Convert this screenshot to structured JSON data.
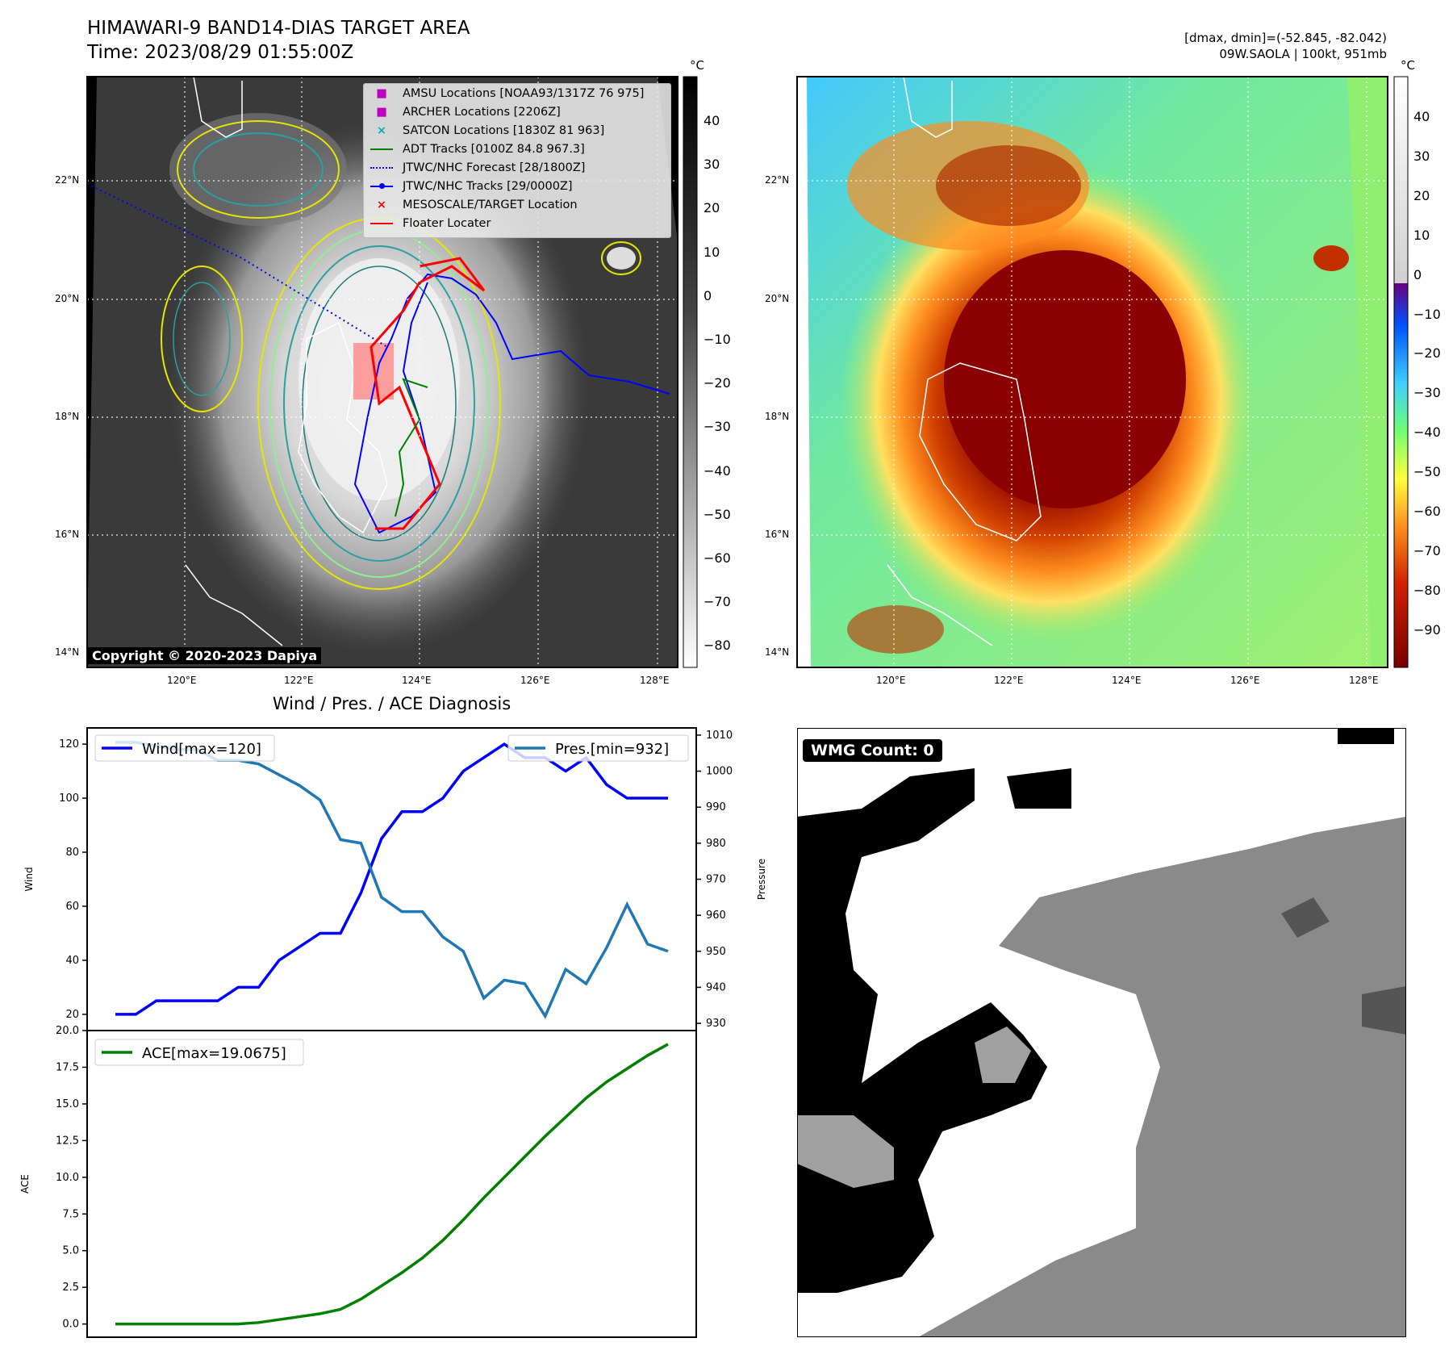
{
  "header": {
    "title": "HIMAWARI-9 BAND14-DIAS TARGET AREA",
    "time": "Time: 2023/08/29 01:55:00Z",
    "dmax_dmin": "[dmax, dmin]=(-52.845, -82.042)",
    "storm": "09W.SAOLA | 100kt, 951mb"
  },
  "colors": {
    "wind": "#0000ff",
    "pressure": "#1f77b4",
    "ace": "#008000"
  },
  "map_left": {
    "legend": [
      {
        "label": "AMSU Locations [NOAA93/1317Z 76 975]",
        "marker": "square",
        "color": "#c000c0"
      },
      {
        "label": "ARCHER Locations [2206Z]",
        "marker": "square",
        "color": "#c000c0"
      },
      {
        "label": "SATCON Locations [1830Z 81 963]",
        "marker": "x",
        "color": "#00b0b0"
      },
      {
        "label": "ADT Tracks [0100Z 84.8 967.3]",
        "marker": "line",
        "color": "#008000"
      },
      {
        "label": "JTWC/NHC Forecast [28/1800Z]",
        "marker": "dotted",
        "color": "#0000ff"
      },
      {
        "label": "JTWC/NHC Tracks [29/0000Z]",
        "marker": "line-dot",
        "color": "#0000ff"
      },
      {
        "label": "MESOSCALE/TARGET Location",
        "marker": "x",
        "color": "#ff0000"
      },
      {
        "label": "Floater Locater",
        "marker": "line",
        "color": "#ff0000"
      }
    ],
    "copyright": "Copyright © 2020-2023 Dapiya",
    "colorbar_unit": "°C",
    "colorbar_ticks": [
      "40",
      "30",
      "20",
      "10",
      "0",
      "−10",
      "−20",
      "−30",
      "−40",
      "−50",
      "−60",
      "−70",
      "−80"
    ]
  },
  "map_right": {
    "colorbar_unit": "°C",
    "colorbar_ticks": [
      "40",
      "30",
      "20",
      "10",
      "0",
      "−10",
      "−20",
      "−30",
      "−40",
      "−50",
      "−60",
      "−70",
      "−80",
      "−90"
    ]
  },
  "map_axes": {
    "lat_labels": [
      "22°N",
      "20°N",
      "18°N",
      "16°N",
      "14°N"
    ],
    "lon_labels": [
      "120°E",
      "122°E",
      "124°E",
      "126°E",
      "128°E"
    ]
  },
  "chart_data": [
    {
      "type": "line",
      "title": "Wind / Pres. / ACE Diagnosis",
      "ylabel": "Wind",
      "y2label": "Pressure",
      "ylim": [
        14,
        126
      ],
      "y2lim": [
        928,
        1012
      ],
      "yticks": [
        "20",
        "40",
        "60",
        "80",
        "100",
        "120"
      ],
      "y2ticks": [
        "930",
        "940",
        "950",
        "960",
        "970",
        "980",
        "990",
        "1000",
        "1010"
      ],
      "series": [
        {
          "name": "Wind[max=120]",
          "axis": "left",
          "values": [
            20,
            20,
            25,
            25,
            25,
            25,
            30,
            30,
            40,
            45,
            50,
            50,
            65,
            85,
            95,
            95,
            100,
            110,
            115,
            120,
            115,
            115,
            110,
            115,
            105,
            100,
            100,
            100
          ]
        },
        {
          "name": "Pres.[min=932]",
          "axis": "right",
          "values": [
            1008,
            1008,
            1007,
            1006,
            1006,
            1003,
            1003,
            1002,
            999,
            996,
            992,
            981,
            980,
            965,
            961,
            961,
            954,
            950,
            937,
            942,
            941,
            932,
            945,
            941,
            951,
            963,
            952,
            950
          ]
        }
      ]
    },
    {
      "type": "line",
      "ylabel": "ACE",
      "ylim": [
        -0.9,
        20.0
      ],
      "yticks": [
        "0.0",
        "2.5",
        "5.0",
        "7.5",
        "10.0",
        "12.5",
        "15.0",
        "17.5",
        "20.0"
      ],
      "series": [
        {
          "name": "ACE[max=19.0675]",
          "values": [
            0,
            0,
            0,
            0,
            0,
            0,
            0,
            0.1,
            0.3,
            0.5,
            0.7,
            1.0,
            1.7,
            2.6,
            3.5,
            4.5,
            5.7,
            7.1,
            8.6,
            10.0,
            11.4,
            12.8,
            14.1,
            15.4,
            16.5,
            17.4,
            18.3,
            19.0675
          ]
        }
      ]
    }
  ],
  "wmg": {
    "label": "WMG Count: 0"
  }
}
